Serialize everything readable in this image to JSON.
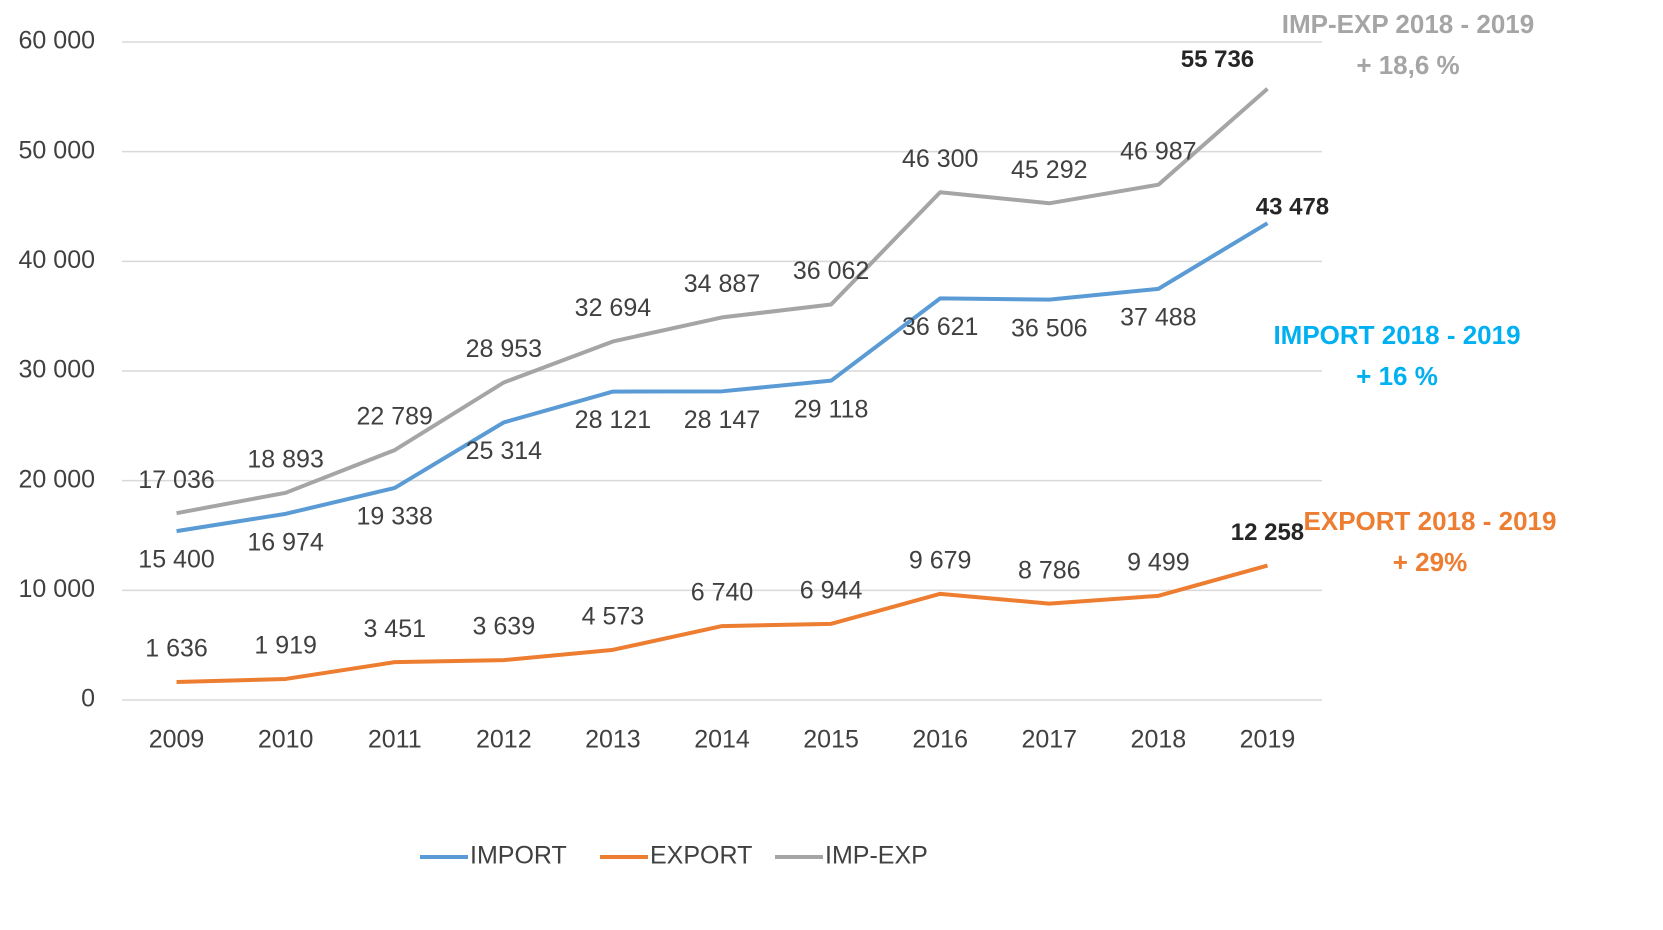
{
  "chart_data": {
    "type": "line",
    "categories": [
      "2009",
      "2010",
      "2011",
      "2012",
      "2013",
      "2014",
      "2015",
      "2016",
      "2017",
      "2018",
      "2019"
    ],
    "series": [
      {
        "name": "IMPORT",
        "color": "#5b9bd5",
        "values": [
          15400,
          16974,
          19338,
          25314,
          28121,
          28147,
          29118,
          36621,
          36506,
          37488,
          43478
        ],
        "value_labels": [
          "15 400",
          "16 974",
          "19 338",
          "25 314",
          "28 121",
          "28 147",
          "29 118",
          "36 621",
          "36 506",
          "37 488",
          "43 478"
        ]
      },
      {
        "name": "EXPORT",
        "color": "#ed7d31",
        "values": [
          1636,
          1919,
          3451,
          3639,
          4573,
          6740,
          6944,
          9679,
          8786,
          9499,
          12258
        ],
        "value_labels": [
          "1 636",
          "1 919",
          "3 451",
          "3 639",
          "4 573",
          "6 740",
          "6 944",
          "9 679",
          "8 786",
          "9 499",
          "12 258"
        ]
      },
      {
        "name": "IMP-EXP",
        "color": "#a5a5a5",
        "values": [
          17036,
          18893,
          22789,
          28953,
          32694,
          34887,
          36062,
          46300,
          45292,
          46987,
          55736
        ],
        "value_labels": [
          "17 036",
          "18 893",
          "22 789",
          "28 953",
          "32 694",
          "34 887",
          "36 062",
          "46 300",
          "45 292",
          "46 987",
          "55 736"
        ]
      }
    ],
    "ylim": [
      0,
      60000
    ],
    "yticks": [
      0,
      {
        "value": 10000,
        "label": "10 000"
      },
      {
        "value": 20000,
        "label": "20 000"
      },
      {
        "value": 30000,
        "label": "30 000"
      },
      {
        "value": 40000,
        "label": "40 000"
      },
      {
        "value": 50000,
        "label": "50 000"
      },
      {
        "value": 60000,
        "label": "60 000"
      }
    ],
    "grid": true,
    "legend": "bottom",
    "annotations": [
      {
        "lines": [
          "IMP-EXP 2018 - 2019",
          "+ 18,6 %"
        ],
        "color": "#a5a5a5"
      },
      {
        "lines": [
          "IMPORT 2018 - 2019",
          "+ 16 %"
        ],
        "color": "#00b0f0"
      },
      {
        "lines": [
          "EXPORT 2018 - 2019",
          "+ 29%"
        ],
        "color": "#ed7d31"
      }
    ]
  }
}
